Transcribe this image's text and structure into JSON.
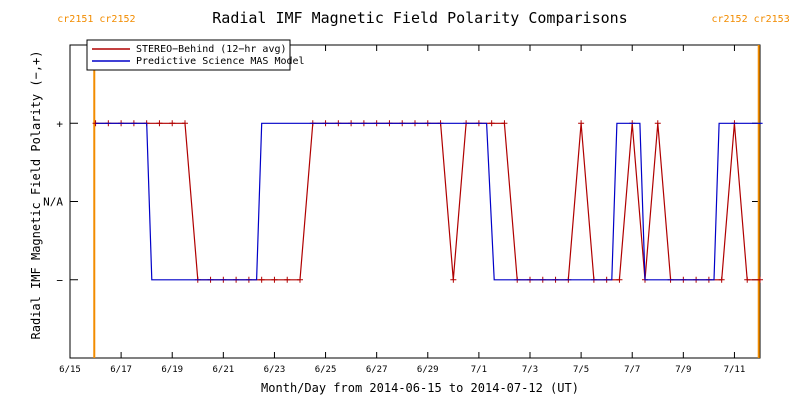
{
  "chart_data": {
    "type": "line",
    "title": "Radial IMF Magnetic Field Polarity Comparisons",
    "xlabel": "Month/Day from 2014-06-15 to 2014-07-12 (UT)",
    "ylabel": "Radial IMF Magnetic Field Polarity (−,+)",
    "x_range_days": [
      0,
      27
    ],
    "y_range": [
      -2,
      2
    ],
    "xticks": [
      {
        "day": 0,
        "label": "6/15"
      },
      {
        "day": 2,
        "label": "6/17"
      },
      {
        "day": 4,
        "label": "6/19"
      },
      {
        "day": 6,
        "label": "6/21"
      },
      {
        "day": 8,
        "label": "6/23"
      },
      {
        "day": 10,
        "label": "6/25"
      },
      {
        "day": 12,
        "label": "6/27"
      },
      {
        "day": 14,
        "label": "6/29"
      },
      {
        "day": 16,
        "label": "7/1"
      },
      {
        "day": 18,
        "label": "7/3"
      },
      {
        "day": 20,
        "label": "7/5"
      },
      {
        "day": 22,
        "label": "7/7"
      },
      {
        "day": 24,
        "label": "7/9"
      },
      {
        "day": 26,
        "label": "7/11"
      }
    ],
    "yticks": [
      {
        "value": 1,
        "label": "+"
      },
      {
        "value": 0,
        "label": "N/A"
      },
      {
        "value": -1,
        "label": "−"
      }
    ],
    "rotation_markers": [
      {
        "day": 0.95,
        "left_label": "cr2151",
        "right_label": "cr2152",
        "label_side": "left"
      },
      {
        "day": 26.95,
        "left_label": "cr2152",
        "right_label": "cr2153",
        "label_side": "right"
      }
    ],
    "legend": {
      "position": "top-left",
      "entries": [
        {
          "label": "STEREO−Behind (12−hr avg)",
          "color": "#b00000"
        },
        {
          "label": "Predictive Science MAS Model",
          "color": "#0000c8"
        }
      ]
    },
    "series": [
      {
        "name": "STEREO−Behind (12−hr avg)",
        "color": "#b00000",
        "markers": true,
        "x": [
          1,
          1.5,
          2,
          2.5,
          3,
          3.5,
          4,
          4.5,
          5,
          5.5,
          6,
          6.5,
          7,
          7.5,
          8,
          8.5,
          9,
          9.5,
          10,
          10.5,
          11,
          11.5,
          12,
          12.5,
          13,
          13.5,
          14,
          14.5,
          15,
          15.5,
          16,
          16.5,
          17,
          17.5,
          18,
          18.5,
          19,
          19.5,
          20,
          20.5,
          21,
          21.5,
          22,
          22.5,
          23,
          23.5,
          24,
          24.5,
          25,
          25.5,
          26,
          26.5,
          27
        ],
        "y": [
          1,
          1,
          1,
          1,
          1,
          1,
          1,
          1,
          -1,
          -1,
          -1,
          -1,
          -1,
          -1,
          -1,
          -1,
          -1,
          1,
          1,
          1,
          1,
          1,
          1,
          1,
          1,
          1,
          1,
          1,
          -1,
          1,
          1,
          1,
          1,
          -1,
          -1,
          -1,
          -1,
          -1,
          1,
          -1,
          -1,
          -1,
          1,
          -1,
          1,
          -1,
          -1,
          -1,
          -1,
          -1,
          1,
          -1,
          -1
        ]
      },
      {
        "name": "Predictive Science MAS Model",
        "color": "#0000c8",
        "markers": false,
        "x": [
          1,
          3.0,
          3.2,
          7.3,
          7.5,
          16.3,
          16.6,
          21.2,
          21.4,
          22.3,
          22.5,
          25.2,
          25.4,
          27.1
        ],
        "y": [
          1,
          1,
          -1,
          -1,
          1,
          1,
          -1,
          -1,
          1,
          1,
          -1,
          -1,
          1,
          1
        ]
      }
    ]
  }
}
